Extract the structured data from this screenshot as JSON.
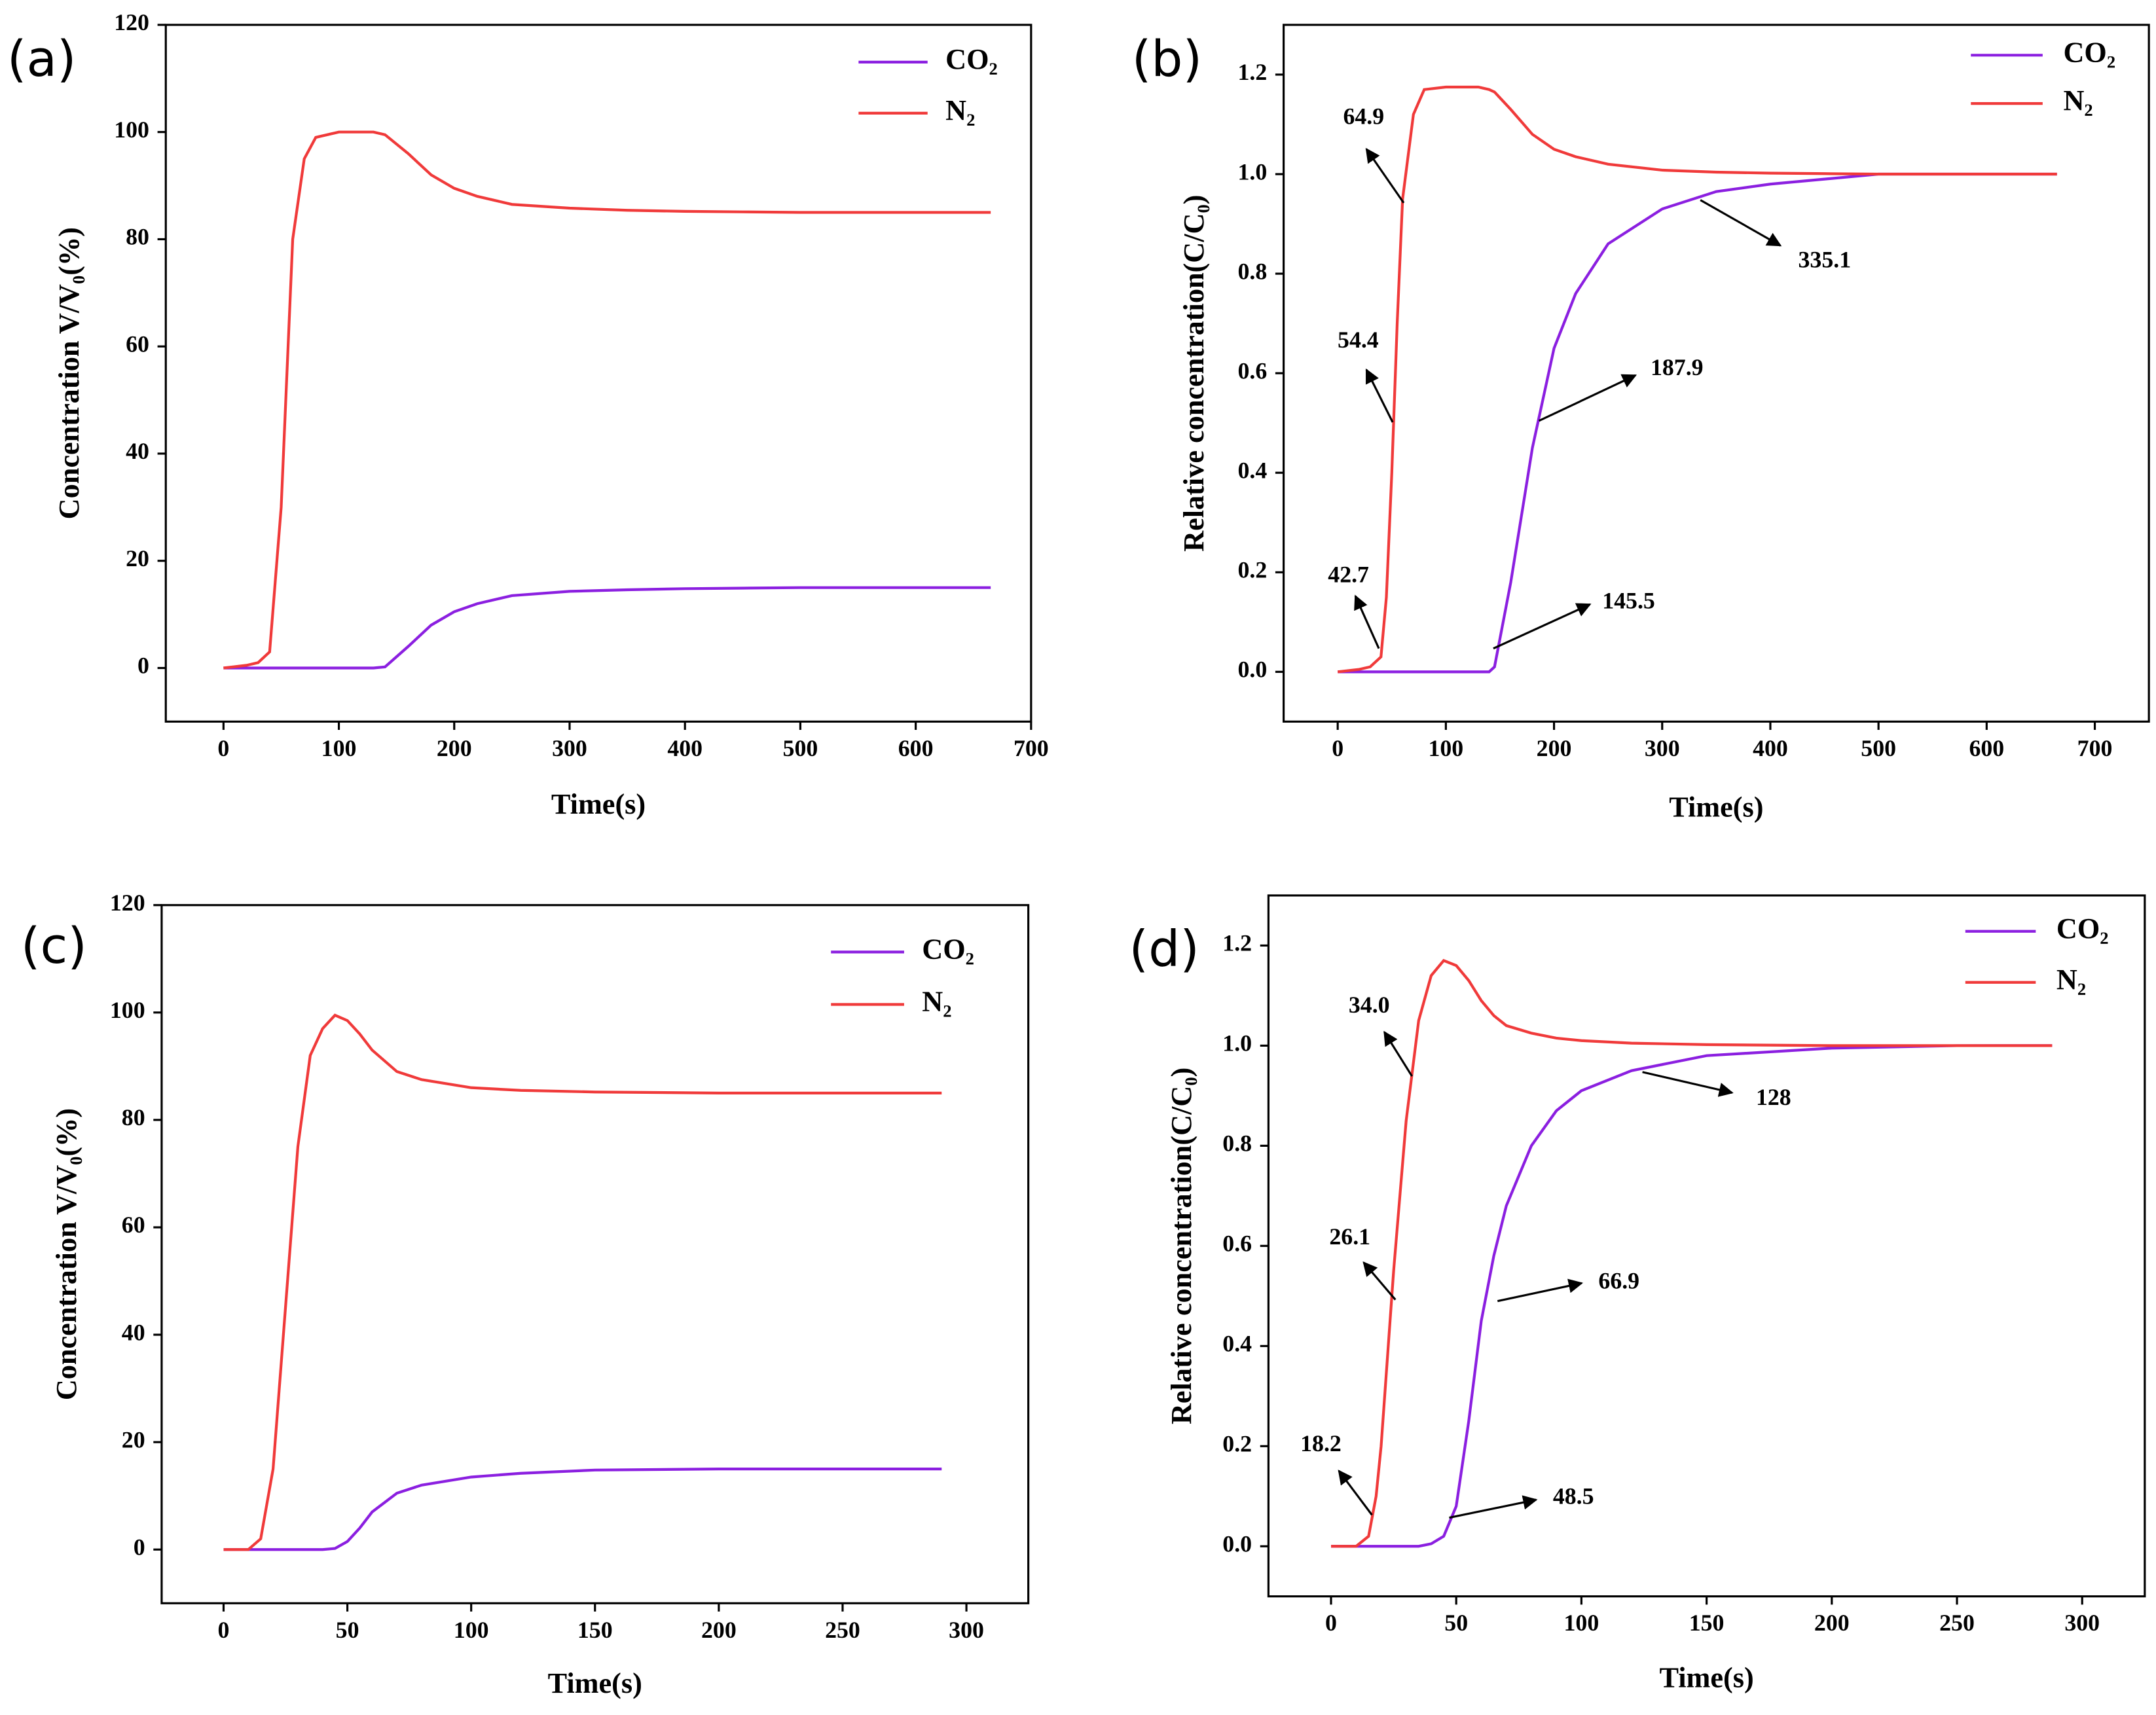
{
  "chart_data": [
    {
      "type": "line",
      "panel_label": "(a)",
      "x_label": "Time(s)",
      "y_label": "Concentration V/V₀(%)",
      "xlim": [
        -50,
        700
      ],
      "xticks": [
        0,
        100,
        200,
        300,
        400,
        500,
        600,
        700
      ],
      "ylim": [
        -10,
        120
      ],
      "yticks": [
        0,
        20,
        40,
        60,
        80,
        100,
        120
      ],
      "x": [
        0,
        20,
        30,
        40,
        50,
        60,
        70,
        80,
        100,
        130,
        140,
        160,
        180,
        200,
        220,
        250,
        300,
        350,
        400,
        450,
        500,
        550,
        600,
        665
      ],
      "series": [
        {
          "name": "CO₂",
          "color": "#8b1fe0",
          "values": [
            0,
            0,
            0,
            0,
            0,
            0,
            0,
            0,
            0,
            0,
            0.2,
            4,
            8,
            10.5,
            12,
            13.5,
            14.3,
            14.6,
            14.8,
            14.9,
            15,
            15,
            15,
            15
          ]
        },
        {
          "name": "N₂",
          "color": "#f03a3a",
          "values": [
            0,
            0.5,
            1,
            3,
            30,
            80,
            95,
            99,
            100,
            100,
            99.5,
            96,
            92,
            89.5,
            88,
            86.5,
            85.8,
            85.4,
            85.2,
            85.1,
            85,
            85,
            85,
            85
          ]
        }
      ],
      "annotations": []
    },
    {
      "type": "line",
      "panel_label": "(b)",
      "x_label": "Time(s)",
      "y_label": "Relative concentration(C/C₀)",
      "xlim": [
        -50,
        750
      ],
      "xticks": [
        0,
        100,
        200,
        300,
        400,
        500,
        600,
        700
      ],
      "ylim": [
        -0.1,
        1.3
      ],
      "yticks": [
        {
          "value": 0,
          "label": "0.0"
        },
        0.2,
        0.4,
        0.6,
        0.8,
        {
          "value": 1,
          "label": "1.0"
        },
        1.2
      ],
      "x": [
        0,
        20,
        30,
        40,
        45,
        50,
        55,
        60,
        70,
        80,
        100,
        130,
        140,
        145,
        160,
        180,
        200,
        220,
        250,
        300,
        350,
        400,
        450,
        500,
        550,
        600,
        665
      ],
      "series": [
        {
          "name": "CO₂",
          "color": "#8b1fe0",
          "values": [
            0,
            0,
            0,
            0,
            0,
            0,
            0,
            0,
            0,
            0,
            0,
            0,
            0,
            0.01,
            0.18,
            0.45,
            0.65,
            0.76,
            0.86,
            0.93,
            0.965,
            0.98,
            0.99,
            1,
            1,
            1,
            1
          ]
        },
        {
          "name": "N₂",
          "color": "#f03a3a",
          "values": [
            0,
            0.005,
            0.01,
            0.03,
            0.15,
            0.4,
            0.7,
            0.95,
            1.12,
            1.17,
            1.175,
            1.175,
            1.17,
            1.165,
            1.13,
            1.08,
            1.05,
            1.035,
            1.02,
            1.008,
            1.004,
            1.002,
            1.001,
            1,
            1,
            1,
            1
          ]
        }
      ],
      "annotations": [
        "64.9",
        "54.4",
        "42.7",
        "145.5",
        "187.9",
        "335.1"
      ]
    },
    {
      "type": "line",
      "panel_label": "(c)",
      "x_label": "Time(s)",
      "y_label": "Concentration V/V₀(%)",
      "xlim": [
        -25,
        325
      ],
      "xticks": [
        0,
        50,
        100,
        150,
        200,
        250,
        300
      ],
      "ylim": [
        -10,
        120
      ],
      "yticks": [
        0,
        20,
        40,
        60,
        80,
        100,
        120
      ],
      "x": [
        0,
        10,
        15,
        20,
        25,
        30,
        35,
        40,
        45,
        50,
        55,
        60,
        70,
        80,
        100,
        120,
        150,
        200,
        250,
        290
      ],
      "series": [
        {
          "name": "CO₂",
          "color": "#8b1fe0",
          "values": [
            0,
            0,
            0,
            0,
            0,
            0,
            0,
            0,
            0.2,
            1.5,
            4,
            7,
            10.5,
            12,
            13.5,
            14.2,
            14.8,
            15,
            15,
            15
          ]
        },
        {
          "name": "N₂",
          "color": "#f03a3a",
          "values": [
            0,
            0,
            2,
            15,
            45,
            75,
            92,
            97,
            99.5,
            98.5,
            96,
            93,
            89,
            87.5,
            86,
            85.5,
            85.2,
            85,
            85,
            85
          ]
        }
      ],
      "annotations": []
    },
    {
      "type": "line",
      "panel_label": "(d)",
      "x_label": "Time(s)",
      "y_label": "Relative concentration(C/C₀)",
      "xlim": [
        -25,
        325
      ],
      "xticks": [
        0,
        50,
        100,
        150,
        200,
        250,
        300
      ],
      "ylim": [
        -0.1,
        1.3
      ],
      "yticks": [
        {
          "value": 0,
          "label": "0.0"
        },
        0.2,
        0.4,
        0.6,
        0.8,
        {
          "value": 1,
          "label": "1.0"
        },
        1.2
      ],
      "x": [
        0,
        10,
        15,
        18,
        20,
        25,
        30,
        35,
        40,
        45,
        50,
        55,
        60,
        65,
        70,
        80,
        90,
        100,
        120,
        150,
        200,
        250,
        288
      ],
      "series": [
        {
          "name": "CO₂",
          "color": "#8b1fe0",
          "values": [
            0,
            0,
            0,
            0,
            0,
            0,
            0,
            0,
            0.005,
            0.02,
            0.08,
            0.25,
            0.45,
            0.58,
            0.68,
            0.8,
            0.87,
            0.91,
            0.95,
            0.98,
            0.995,
            1,
            1
          ]
        },
        {
          "name": "N₂",
          "color": "#f03a3a",
          "values": [
            0,
            0,
            0.02,
            0.1,
            0.2,
            0.55,
            0.85,
            1.05,
            1.14,
            1.17,
            1.16,
            1.13,
            1.09,
            1.06,
            1.04,
            1.025,
            1.015,
            1.01,
            1.005,
            1.002,
            1,
            1,
            1
          ]
        }
      ],
      "annotations": [
        "34.0",
        "26.1",
        "18.2",
        "48.5",
        "66.9",
        "128"
      ]
    }
  ]
}
